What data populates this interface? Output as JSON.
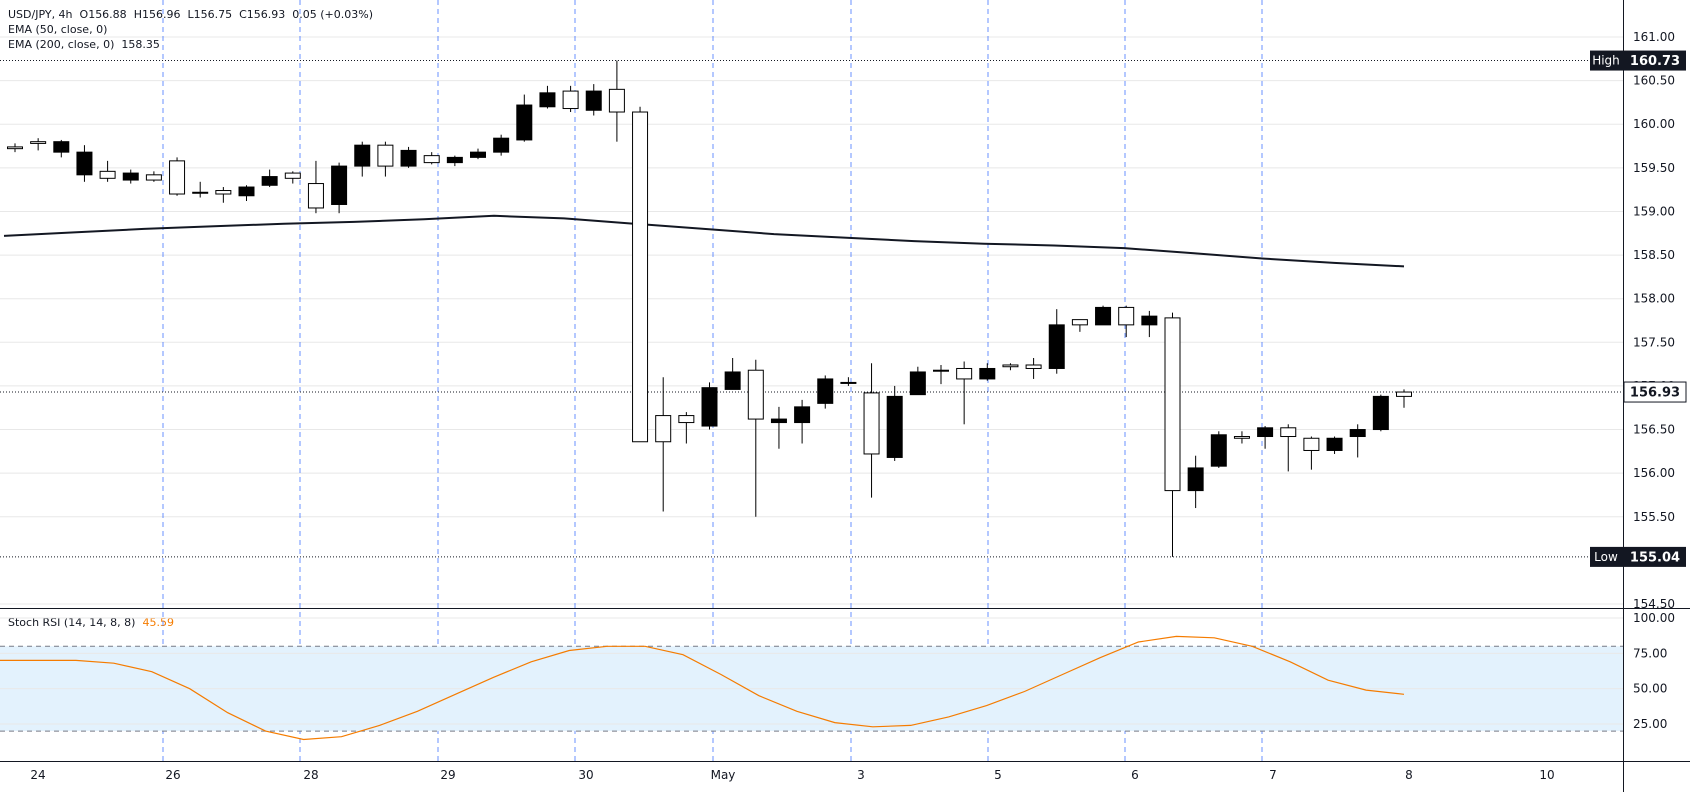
{
  "legend": {
    "symbol": "USD/JPY, 4h",
    "open": "O156.88",
    "high": "H156.96",
    "low": "L156.75",
    "close": "C156.93",
    "change": "0.05 (+0.03%)",
    "ema50_label": "EMA (50, close, 0)",
    "ema200_label": "EMA (200, close, 0)",
    "ema200_value": "158.35",
    "stoch_label": "Stoch RSI (14, 14, 8, 8)",
    "stoch_value": "45.59"
  },
  "colors": {
    "candle_up": "#ffffff",
    "candle_down": "#000000",
    "grid_vertical": "#2962ff",
    "stoch_line": "#f57c00",
    "stoch_band": "#e3f2fd"
  },
  "chart_data": {
    "type": "candlestick",
    "price_axis": {
      "ticks": [
        "161.00",
        "160.50",
        "160.00",
        "159.50",
        "159.00",
        "158.50",
        "158.00",
        "157.50",
        "157.00",
        "156.50",
        "156.00",
        "155.50",
        "154.50"
      ],
      "ylim": [
        154.4,
        161.3
      ]
    },
    "high_marker": {
      "label": "High",
      "value": "160.73"
    },
    "low_marker": {
      "label": "Low",
      "value": "155.04"
    },
    "last_price": "156.93",
    "x_labels": [
      "24",
      "26",
      "28",
      "29",
      "30",
      "May",
      "3",
      "5",
      "6",
      "7",
      "8",
      "10"
    ],
    "candles": [
      {
        "o": 159.72,
        "h": 159.78,
        "l": 159.68,
        "c": 159.74
      },
      {
        "o": 159.78,
        "h": 159.84,
        "l": 159.7,
        "c": 159.8
      },
      {
        "o": 159.8,
        "h": 159.82,
        "l": 159.62,
        "c": 159.68
      },
      {
        "o": 159.68,
        "h": 159.76,
        "l": 159.34,
        "c": 159.42
      },
      {
        "o": 159.38,
        "h": 159.58,
        "l": 159.34,
        "c": 159.46
      },
      {
        "o": 159.44,
        "h": 159.48,
        "l": 159.32,
        "c": 159.36
      },
      {
        "o": 159.36,
        "h": 159.46,
        "l": 159.34,
        "c": 159.42
      },
      {
        "o": 159.2,
        "h": 159.62,
        "l": 159.18,
        "c": 159.58
      },
      {
        "o": 159.22,
        "h": 159.34,
        "l": 159.16,
        "c": 159.22
      },
      {
        "o": 159.2,
        "h": 159.28,
        "l": 159.1,
        "c": 159.24
      },
      {
        "o": 159.28,
        "h": 159.3,
        "l": 159.12,
        "c": 159.18
      },
      {
        "o": 159.4,
        "h": 159.48,
        "l": 159.28,
        "c": 159.3
      },
      {
        "o": 159.38,
        "h": 159.46,
        "l": 159.32,
        "c": 159.44
      },
      {
        "o": 159.04,
        "h": 159.58,
        "l": 158.98,
        "c": 159.32
      },
      {
        "o": 159.52,
        "h": 159.56,
        "l": 158.98,
        "c": 159.08
      },
      {
        "o": 159.76,
        "h": 159.8,
        "l": 159.4,
        "c": 159.52
      },
      {
        "o": 159.52,
        "h": 159.8,
        "l": 159.4,
        "c": 159.76
      },
      {
        "o": 159.7,
        "h": 159.74,
        "l": 159.5,
        "c": 159.52
      },
      {
        "o": 159.56,
        "h": 159.68,
        "l": 159.54,
        "c": 159.64
      },
      {
        "o": 159.62,
        "h": 159.64,
        "l": 159.52,
        "c": 159.56
      },
      {
        "o": 159.68,
        "h": 159.72,
        "l": 159.6,
        "c": 159.62
      },
      {
        "o": 159.84,
        "h": 159.88,
        "l": 159.64,
        "c": 159.68
      },
      {
        "o": 160.22,
        "h": 160.34,
        "l": 159.8,
        "c": 159.82
      },
      {
        "o": 160.36,
        "h": 160.44,
        "l": 160.18,
        "c": 160.2
      },
      {
        "o": 160.18,
        "h": 160.44,
        "l": 160.14,
        "c": 160.38
      },
      {
        "o": 160.38,
        "h": 160.46,
        "l": 160.1,
        "c": 160.16
      },
      {
        "o": 160.14,
        "h": 160.73,
        "l": 159.8,
        "c": 160.4
      },
      {
        "o": 156.36,
        "h": 160.2,
        "l": 156.36,
        "c": 160.14
      },
      {
        "o": 156.36,
        "h": 157.1,
        "l": 155.56,
        "c": 156.66
      },
      {
        "o": 156.58,
        "h": 156.7,
        "l": 156.34,
        "c": 156.66
      },
      {
        "o": 156.98,
        "h": 157.04,
        "l": 156.5,
        "c": 156.54
      },
      {
        "o": 157.16,
        "h": 157.32,
        "l": 156.96,
        "c": 156.96
      },
      {
        "o": 156.62,
        "h": 157.3,
        "l": 155.5,
        "c": 157.18
      },
      {
        "o": 156.62,
        "h": 156.76,
        "l": 156.28,
        "c": 156.58
      },
      {
        "o": 156.76,
        "h": 156.84,
        "l": 156.34,
        "c": 156.58
      },
      {
        "o": 157.08,
        "h": 157.12,
        "l": 156.74,
        "c": 156.8
      },
      {
        "o": 157.04,
        "h": 157.1,
        "l": 157.0,
        "c": 157.04
      },
      {
        "o": 156.22,
        "h": 157.26,
        "l": 155.72,
        "c": 156.92
      },
      {
        "o": 156.88,
        "h": 157.0,
        "l": 156.14,
        "c": 156.18
      },
      {
        "o": 157.16,
        "h": 157.22,
        "l": 156.9,
        "c": 156.9
      },
      {
        "o": 157.18,
        "h": 157.24,
        "l": 157.02,
        "c": 157.18
      },
      {
        "o": 157.08,
        "h": 157.28,
        "l": 156.56,
        "c": 157.2
      },
      {
        "o": 157.2,
        "h": 157.26,
        "l": 157.06,
        "c": 157.08
      },
      {
        "o": 157.22,
        "h": 157.26,
        "l": 157.18,
        "c": 157.24
      },
      {
        "o": 157.2,
        "h": 157.32,
        "l": 157.08,
        "c": 157.24
      },
      {
        "o": 157.7,
        "h": 157.88,
        "l": 157.14,
        "c": 157.2
      },
      {
        "o": 157.7,
        "h": 157.76,
        "l": 157.62,
        "c": 157.76
      },
      {
        "o": 157.9,
        "h": 157.92,
        "l": 157.7,
        "c": 157.7
      },
      {
        "o": 157.7,
        "h": 157.92,
        "l": 157.56,
        "c": 157.9
      },
      {
        "o": 157.8,
        "h": 157.86,
        "l": 157.56,
        "c": 157.7
      },
      {
        "o": 155.8,
        "h": 157.84,
        "l": 155.04,
        "c": 157.78
      },
      {
        "o": 156.06,
        "h": 156.2,
        "l": 155.6,
        "c": 155.8
      },
      {
        "o": 156.44,
        "h": 156.48,
        "l": 156.06,
        "c": 156.08
      },
      {
        "o": 156.4,
        "h": 156.48,
        "l": 156.34,
        "c": 156.42
      },
      {
        "o": 156.52,
        "h": 156.54,
        "l": 156.28,
        "c": 156.42
      },
      {
        "o": 156.42,
        "h": 156.56,
        "l": 156.02,
        "c": 156.52
      },
      {
        "o": 156.26,
        "h": 156.42,
        "l": 156.04,
        "c": 156.4
      },
      {
        "o": 156.4,
        "h": 156.42,
        "l": 156.22,
        "c": 156.26
      },
      {
        "o": 156.5,
        "h": 156.56,
        "l": 156.18,
        "c": 156.42
      },
      {
        "o": 156.88,
        "h": 156.9,
        "l": 156.48,
        "c": 156.5
      },
      {
        "o": 156.88,
        "h": 156.96,
        "l": 156.75,
        "c": 156.93
      }
    ],
    "ema200": [
      158.72,
      158.76,
      158.8,
      158.83,
      158.86,
      158.88,
      158.91,
      158.95,
      158.92,
      158.86,
      158.8,
      158.74,
      158.7,
      158.66,
      158.63,
      158.61,
      158.58,
      158.52,
      158.46,
      158.41,
      158.37
    ],
    "stoch_axis": {
      "ticks": [
        "100.00",
        "75.00",
        "50.00",
        "25.00"
      ],
      "ylim": [
        0,
        100
      ],
      "bands": [
        80,
        20
      ]
    },
    "stoch_rsi": [
      70,
      70,
      70,
      68,
      62,
      50,
      33,
      20,
      14,
      16,
      24,
      34,
      46,
      58,
      69,
      77,
      80,
      80,
      74,
      60,
      45,
      34,
      26,
      23,
      24,
      30,
      38,
      48,
      60,
      72,
      83,
      87,
      86,
      80,
      69,
      56,
      49,
      46
    ]
  }
}
